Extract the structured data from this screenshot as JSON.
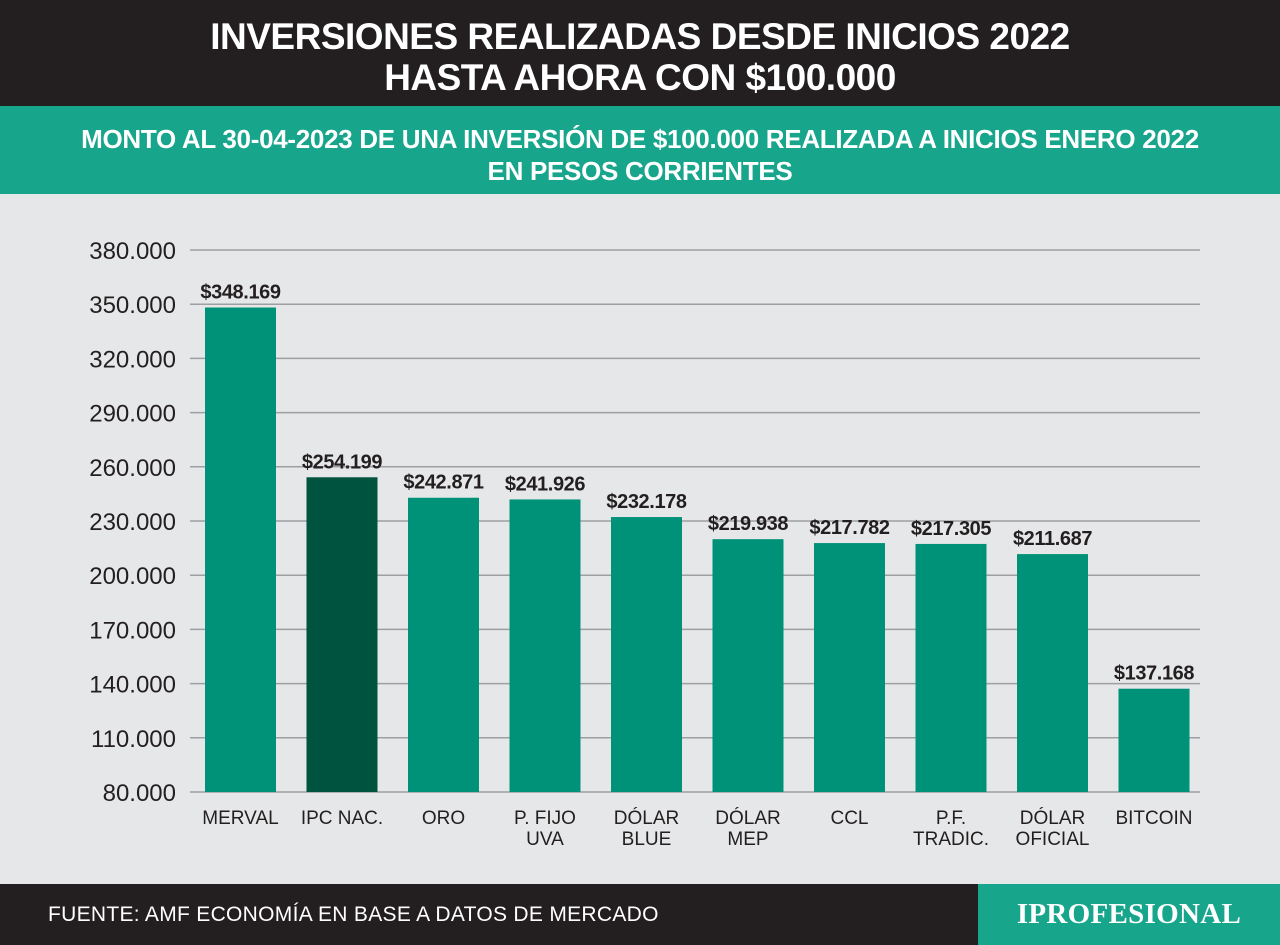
{
  "header": {
    "title_line1": "INVERSIONES REALIZADAS DESDE INICIOS 2022",
    "title_line2": "HASTA AHORA CON $100.000"
  },
  "subheader": {
    "line1": "MONTO AL 30-04-2023 DE UNA INVERSIÓN DE $100.000 REALIZADA A INICIOS ENERO 2022",
    "line2": "EN PESOS CORRIENTES"
  },
  "footer": {
    "source": "FUENTE: AMF ECONOMÍA EN BASE A DATOS DE MERCADO",
    "logo": "IPROFESIONAL"
  },
  "colors": {
    "bar": "#009278",
    "bar_highlight": "#00533f",
    "header_bg": "#231f20",
    "accent": "#17a58c",
    "plot_bg": "#e6e7e8"
  },
  "chart_data": {
    "type": "bar",
    "title": "",
    "xlabel": "",
    "ylabel": "",
    "ylim": [
      80000,
      380000
    ],
    "yticks": [
      80000,
      110000,
      140000,
      170000,
      200000,
      230000,
      260000,
      290000,
      320000,
      350000,
      380000
    ],
    "ytick_labels": [
      "80.000",
      "110.000",
      "140.000",
      "170.000",
      "200.000",
      "230.000",
      "260.000",
      "290.000",
      "320.000",
      "350.000",
      "380.000"
    ],
    "grid": true,
    "categories": [
      [
        "MERVAL"
      ],
      [
        "IPC  NAC."
      ],
      [
        "ORO"
      ],
      [
        "P. FIJO",
        "UVA"
      ],
      [
        "DÓLAR",
        "BLUE"
      ],
      [
        "DÓLAR",
        "MEP"
      ],
      [
        "CCL"
      ],
      [
        "P.F.",
        "TRADIC."
      ],
      [
        "DÓLAR",
        "OFICIAL"
      ],
      [
        "BITCOIN"
      ]
    ],
    "values": [
      348169,
      254199,
      242871,
      241926,
      232178,
      219938,
      217782,
      217305,
      211687,
      137168
    ],
    "value_labels": [
      "$348.169",
      "$254.199",
      "$242.871",
      "$241.926",
      "$232.178",
      "$219.938",
      "$217.782",
      "$217.305",
      "$211.687",
      "$137.168"
    ],
    "highlight_index": 1
  }
}
